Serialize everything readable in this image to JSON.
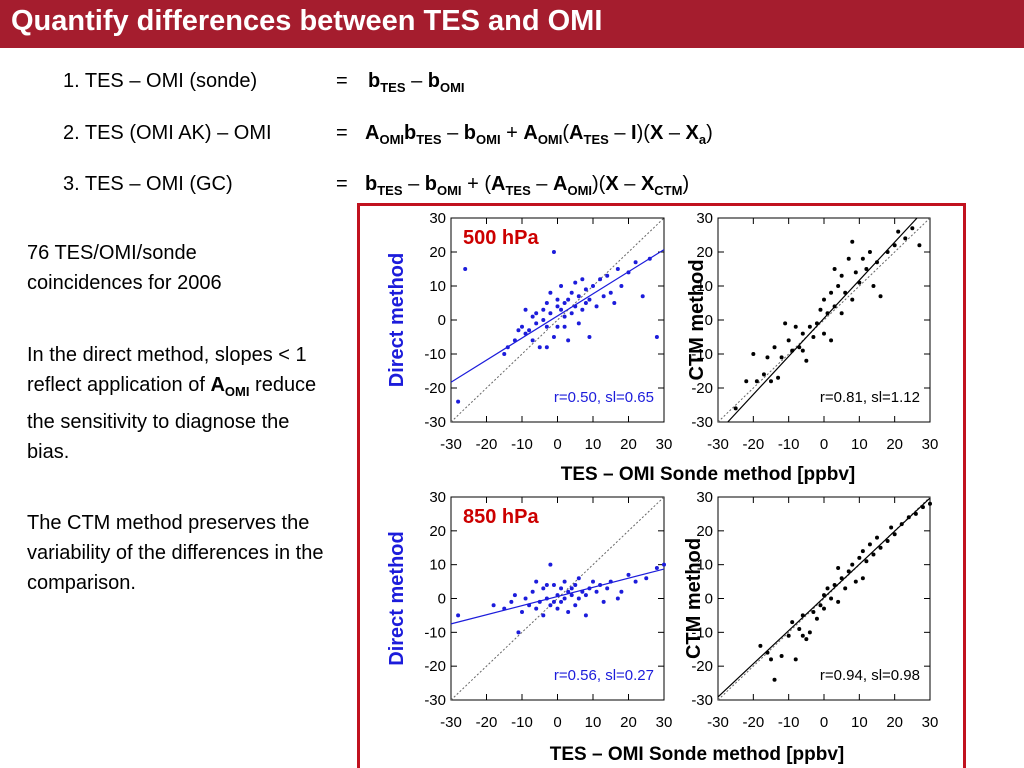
{
  "title": "Quantify differences between TES and OMI",
  "equations": [
    {
      "label": "1. TES – OMI (sonde)",
      "equals": "=",
      "parts": [
        [
          "b",
          "b"
        ],
        [
          "sub",
          "TES"
        ],
        [
          "t",
          " – "
        ],
        [
          "b",
          "b"
        ],
        [
          "sub",
          "OMI"
        ]
      ]
    },
    {
      "label": "2. TES (OMI AK) – OMI",
      "equals": "=",
      "parts": [
        [
          "b",
          "A"
        ],
        [
          "sub",
          "OMI"
        ],
        [
          "b",
          "b"
        ],
        [
          "sub",
          "TES"
        ],
        [
          "t",
          " – "
        ],
        [
          "b",
          "b"
        ],
        [
          "sub",
          "OMI"
        ],
        [
          "t",
          " + "
        ],
        [
          "b",
          "A"
        ],
        [
          "sub",
          "OMI"
        ],
        [
          "t",
          "("
        ],
        [
          "b",
          "A"
        ],
        [
          "sub",
          "TES"
        ],
        [
          "t",
          " – "
        ],
        [
          "b",
          "I"
        ],
        [
          "t",
          ")("
        ],
        [
          "b",
          "X"
        ],
        [
          "t",
          " – "
        ],
        [
          "b",
          "X"
        ],
        [
          "sub",
          "a"
        ],
        [
          "t",
          ")"
        ]
      ]
    },
    {
      "label": "3. TES – OMI (GC)",
      "equals": "=",
      "parts": [
        [
          "b",
          "b"
        ],
        [
          "sub",
          "TES"
        ],
        [
          "t",
          " – "
        ],
        [
          "b",
          "b"
        ],
        [
          "sub",
          "OMI"
        ],
        [
          "t",
          " + ("
        ],
        [
          "b",
          "A"
        ],
        [
          "sub",
          "TES"
        ],
        [
          "t",
          " – "
        ],
        [
          "b",
          "A"
        ],
        [
          "sub",
          "OMI"
        ],
        [
          "t",
          ")("
        ],
        [
          "b",
          "X"
        ],
        [
          "t",
          " – "
        ],
        [
          "b",
          "X"
        ],
        [
          "sub",
          "CTM"
        ],
        [
          "t",
          ")"
        ]
      ]
    }
  ],
  "side_text": {
    "coincidences": "76 TES/OMI/sonde coincidences for 2006",
    "direct_before": "In the direct method, slopes < 1 reflect application of",
    "direct_symbol": "A",
    "direct_symbol_sub": "OMI",
    "direct_after": "reduce the sensitivity to diagnose the bias.",
    "ctm_note": "The CTM method preserves the variability of the differences in the comparison."
  },
  "figure": {
    "xlabel": "TES – OMI Sonde method [ppbv]",
    "direct_label": "Direct method",
    "ctm_label": "CTM method",
    "pressure_color": "#cc0000",
    "direct_color": "#1c1cdb",
    "ctm_color": "#000000"
  },
  "chart_data": [
    {
      "type": "scatter",
      "title": "500 hPa",
      "ylabel": "Direct method",
      "xlabel": "TES – OMI Sonde method [ppbv]",
      "xlim": [
        -30,
        30
      ],
      "ylim": [
        -30,
        30
      ],
      "xticks": [
        -30,
        -20,
        -10,
        0,
        10,
        20,
        30
      ],
      "yticks": [
        -30,
        -20,
        -10,
        0,
        10,
        20,
        30
      ],
      "color": "#1c1cdb",
      "annotation": "r=0.50, sl=0.65",
      "fit": {
        "slope": 0.65,
        "intercept": 1.2
      },
      "one_to_one": true,
      "points": [
        [
          -26,
          15
        ],
        [
          -28,
          -24
        ],
        [
          -15,
          -10
        ],
        [
          -12,
          -6
        ],
        [
          -10,
          -2
        ],
        [
          -9,
          3
        ],
        [
          -9,
          -4
        ],
        [
          -8,
          -3
        ],
        [
          -7,
          1
        ],
        [
          -7,
          -6
        ],
        [
          -6,
          2
        ],
        [
          -6,
          -1
        ],
        [
          -5,
          -8
        ],
        [
          -4,
          0
        ],
        [
          -4,
          3
        ],
        [
          -3,
          5
        ],
        [
          -3,
          -2
        ],
        [
          -2,
          8
        ],
        [
          -2,
          2
        ],
        [
          -1,
          -5
        ],
        [
          -1,
          20
        ],
        [
          0,
          4
        ],
        [
          0,
          6
        ],
        [
          0,
          -2
        ],
        [
          1,
          3
        ],
        [
          1,
          10
        ],
        [
          2,
          5
        ],
        [
          2,
          1
        ],
        [
          3,
          6
        ],
        [
          3,
          -6
        ],
        [
          4,
          8
        ],
        [
          4,
          2
        ],
        [
          5,
          11
        ],
        [
          5,
          4
        ],
        [
          6,
          7
        ],
        [
          6,
          -1
        ],
        [
          7,
          3
        ],
        [
          7,
          12
        ],
        [
          8,
          5
        ],
        [
          8,
          9
        ],
        [
          9,
          6
        ],
        [
          9,
          -5
        ],
        [
          10,
          10
        ],
        [
          11,
          4
        ],
        [
          12,
          12
        ],
        [
          13,
          7
        ],
        [
          14,
          13
        ],
        [
          15,
          8
        ],
        [
          16,
          5
        ],
        [
          17,
          15
        ],
        [
          18,
          10
        ],
        [
          20,
          14
        ],
        [
          22,
          17
        ],
        [
          24,
          7
        ],
        [
          26,
          18
        ],
        [
          28,
          -5
        ],
        [
          -14,
          -8
        ],
        [
          -3,
          -8
        ],
        [
          -11,
          -3
        ],
        [
          2,
          -2
        ]
      ]
    },
    {
      "type": "scatter",
      "title": "",
      "ylabel": "CTM method",
      "xlabel": "TES – OMI Sonde method [ppbv]",
      "xlim": [
        -30,
        30
      ],
      "ylim": [
        -30,
        30
      ],
      "xticks": [
        -30,
        -20,
        -10,
        0,
        10,
        20,
        30
      ],
      "yticks": [
        -30,
        -20,
        -10,
        0,
        10,
        20,
        30
      ],
      "color": "#000000",
      "annotation": "r=0.81, sl=1.12",
      "fit": {
        "slope": 1.12,
        "intercept": 0.5
      },
      "one_to_one": true,
      "points": [
        [
          -25,
          -26
        ],
        [
          -22,
          -18
        ],
        [
          -20,
          -10
        ],
        [
          -19,
          -18
        ],
        [
          -17,
          -16
        ],
        [
          -16,
          -11
        ],
        [
          -15,
          -18
        ],
        [
          -14,
          -8
        ],
        [
          -12,
          -11
        ],
        [
          -10,
          -6
        ],
        [
          -9,
          -9
        ],
        [
          -8,
          -2
        ],
        [
          -7,
          -8
        ],
        [
          -6,
          -4
        ],
        [
          -5,
          -12
        ],
        [
          -4,
          -2
        ],
        [
          -3,
          -5
        ],
        [
          -2,
          -1
        ],
        [
          -1,
          3
        ],
        [
          0,
          -4
        ],
        [
          0,
          6
        ],
        [
          1,
          2
        ],
        [
          2,
          -6
        ],
        [
          2,
          8
        ],
        [
          3,
          4
        ],
        [
          4,
          10
        ],
        [
          5,
          2
        ],
        [
          5,
          13
        ],
        [
          6,
          8
        ],
        [
          7,
          18
        ],
        [
          8,
          6
        ],
        [
          9,
          14
        ],
        [
          10,
          11
        ],
        [
          11,
          18
        ],
        [
          12,
          15
        ],
        [
          13,
          20
        ],
        [
          14,
          10
        ],
        [
          15,
          17
        ],
        [
          16,
          7
        ],
        [
          18,
          20
        ],
        [
          20,
          22
        ],
        [
          21,
          26
        ],
        [
          23,
          24
        ],
        [
          25,
          27
        ],
        [
          27,
          22
        ],
        [
          -13,
          -17
        ],
        [
          -11,
          -1
        ],
        [
          -6,
          -9
        ],
        [
          3,
          15
        ],
        [
          8,
          23
        ]
      ]
    },
    {
      "type": "scatter",
      "title": "850 hPa",
      "ylabel": "Direct method",
      "xlabel": "TES – OMI Sonde method [ppbv]",
      "xlim": [
        -30,
        30
      ],
      "ylim": [
        -30,
        30
      ],
      "xticks": [
        -30,
        -20,
        -10,
        0,
        10,
        20,
        30
      ],
      "yticks": [
        -30,
        -20,
        -10,
        0,
        10,
        20,
        30
      ],
      "color": "#1c1cdb",
      "annotation": "r=0.56, sl=0.27",
      "fit": {
        "slope": 0.27,
        "intercept": 0.6
      },
      "one_to_one": true,
      "points": [
        [
          -28,
          -5
        ],
        [
          -18,
          -2
        ],
        [
          -15,
          -3
        ],
        [
          -12,
          1
        ],
        [
          -11,
          -10
        ],
        [
          -10,
          -4
        ],
        [
          -9,
          0
        ],
        [
          -8,
          -2
        ],
        [
          -7,
          2
        ],
        [
          -6,
          -3
        ],
        [
          -6,
          5
        ],
        [
          -5,
          -1
        ],
        [
          -4,
          -5
        ],
        [
          -4,
          3
        ],
        [
          -3,
          0
        ],
        [
          -2,
          -2
        ],
        [
          -2,
          10
        ],
        [
          -1,
          4
        ],
        [
          -1,
          -1
        ],
        [
          0,
          1
        ],
        [
          0,
          -3
        ],
        [
          1,
          3
        ],
        [
          1,
          -1
        ],
        [
          2,
          0
        ],
        [
          2,
          5
        ],
        [
          3,
          2
        ],
        [
          3,
          -4
        ],
        [
          4,
          1
        ],
        [
          4,
          3
        ],
        [
          5,
          -2
        ],
        [
          5,
          4
        ],
        [
          6,
          0
        ],
        [
          6,
          6
        ],
        [
          7,
          2
        ],
        [
          8,
          1
        ],
        [
          8,
          -5
        ],
        [
          9,
          3
        ],
        [
          10,
          5
        ],
        [
          11,
          2
        ],
        [
          12,
          4
        ],
        [
          13,
          -1
        ],
        [
          14,
          3
        ],
        [
          15,
          5
        ],
        [
          17,
          0
        ],
        [
          18,
          2
        ],
        [
          20,
          7
        ],
        [
          22,
          5
        ],
        [
          25,
          6
        ],
        [
          28,
          9
        ],
        [
          30,
          10
        ],
        [
          -13,
          -1
        ],
        [
          -3,
          4
        ]
      ]
    },
    {
      "type": "scatter",
      "title": "",
      "ylabel": "CTM method",
      "xlabel": "TES – OMI Sonde method [ppbv]",
      "xlim": [
        -30,
        30
      ],
      "ylim": [
        -30,
        30
      ],
      "xticks": [
        -30,
        -20,
        -10,
        0,
        10,
        20,
        30
      ],
      "yticks": [
        -30,
        -20,
        -10,
        0,
        10,
        20,
        30
      ],
      "color": "#000000",
      "annotation": "r=0.94, sl=0.98",
      "fit": {
        "slope": 0.98,
        "intercept": 0.3
      },
      "one_to_one": true,
      "points": [
        [
          -18,
          -14
        ],
        [
          -16,
          -16
        ],
        [
          -14,
          -24
        ],
        [
          -12,
          -17
        ],
        [
          -10,
          -11
        ],
        [
          -9,
          -7
        ],
        [
          -8,
          -18
        ],
        [
          -7,
          -9
        ],
        [
          -6,
          -5
        ],
        [
          -5,
          -12
        ],
        [
          -4,
          -10
        ],
        [
          -3,
          -4
        ],
        [
          -2,
          -6
        ],
        [
          -1,
          -2
        ],
        [
          0,
          1
        ],
        [
          0,
          -3
        ],
        [
          1,
          3
        ],
        [
          2,
          0
        ],
        [
          3,
          4
        ],
        [
          4,
          -1
        ],
        [
          5,
          6
        ],
        [
          6,
          3
        ],
        [
          7,
          8
        ],
        [
          8,
          10
        ],
        [
          9,
          5
        ],
        [
          10,
          12
        ],
        [
          11,
          14
        ],
        [
          12,
          11
        ],
        [
          13,
          16
        ],
        [
          14,
          13
        ],
        [
          15,
          18
        ],
        [
          16,
          15
        ],
        [
          18,
          17
        ],
        [
          19,
          21
        ],
        [
          20,
          19
        ],
        [
          22,
          22
        ],
        [
          24,
          24
        ],
        [
          26,
          25
        ],
        [
          28,
          27
        ],
        [
          30,
          28
        ],
        [
          -15,
          -18
        ],
        [
          -6,
          -11
        ],
        [
          4,
          9
        ],
        [
          11,
          6
        ]
      ]
    }
  ]
}
